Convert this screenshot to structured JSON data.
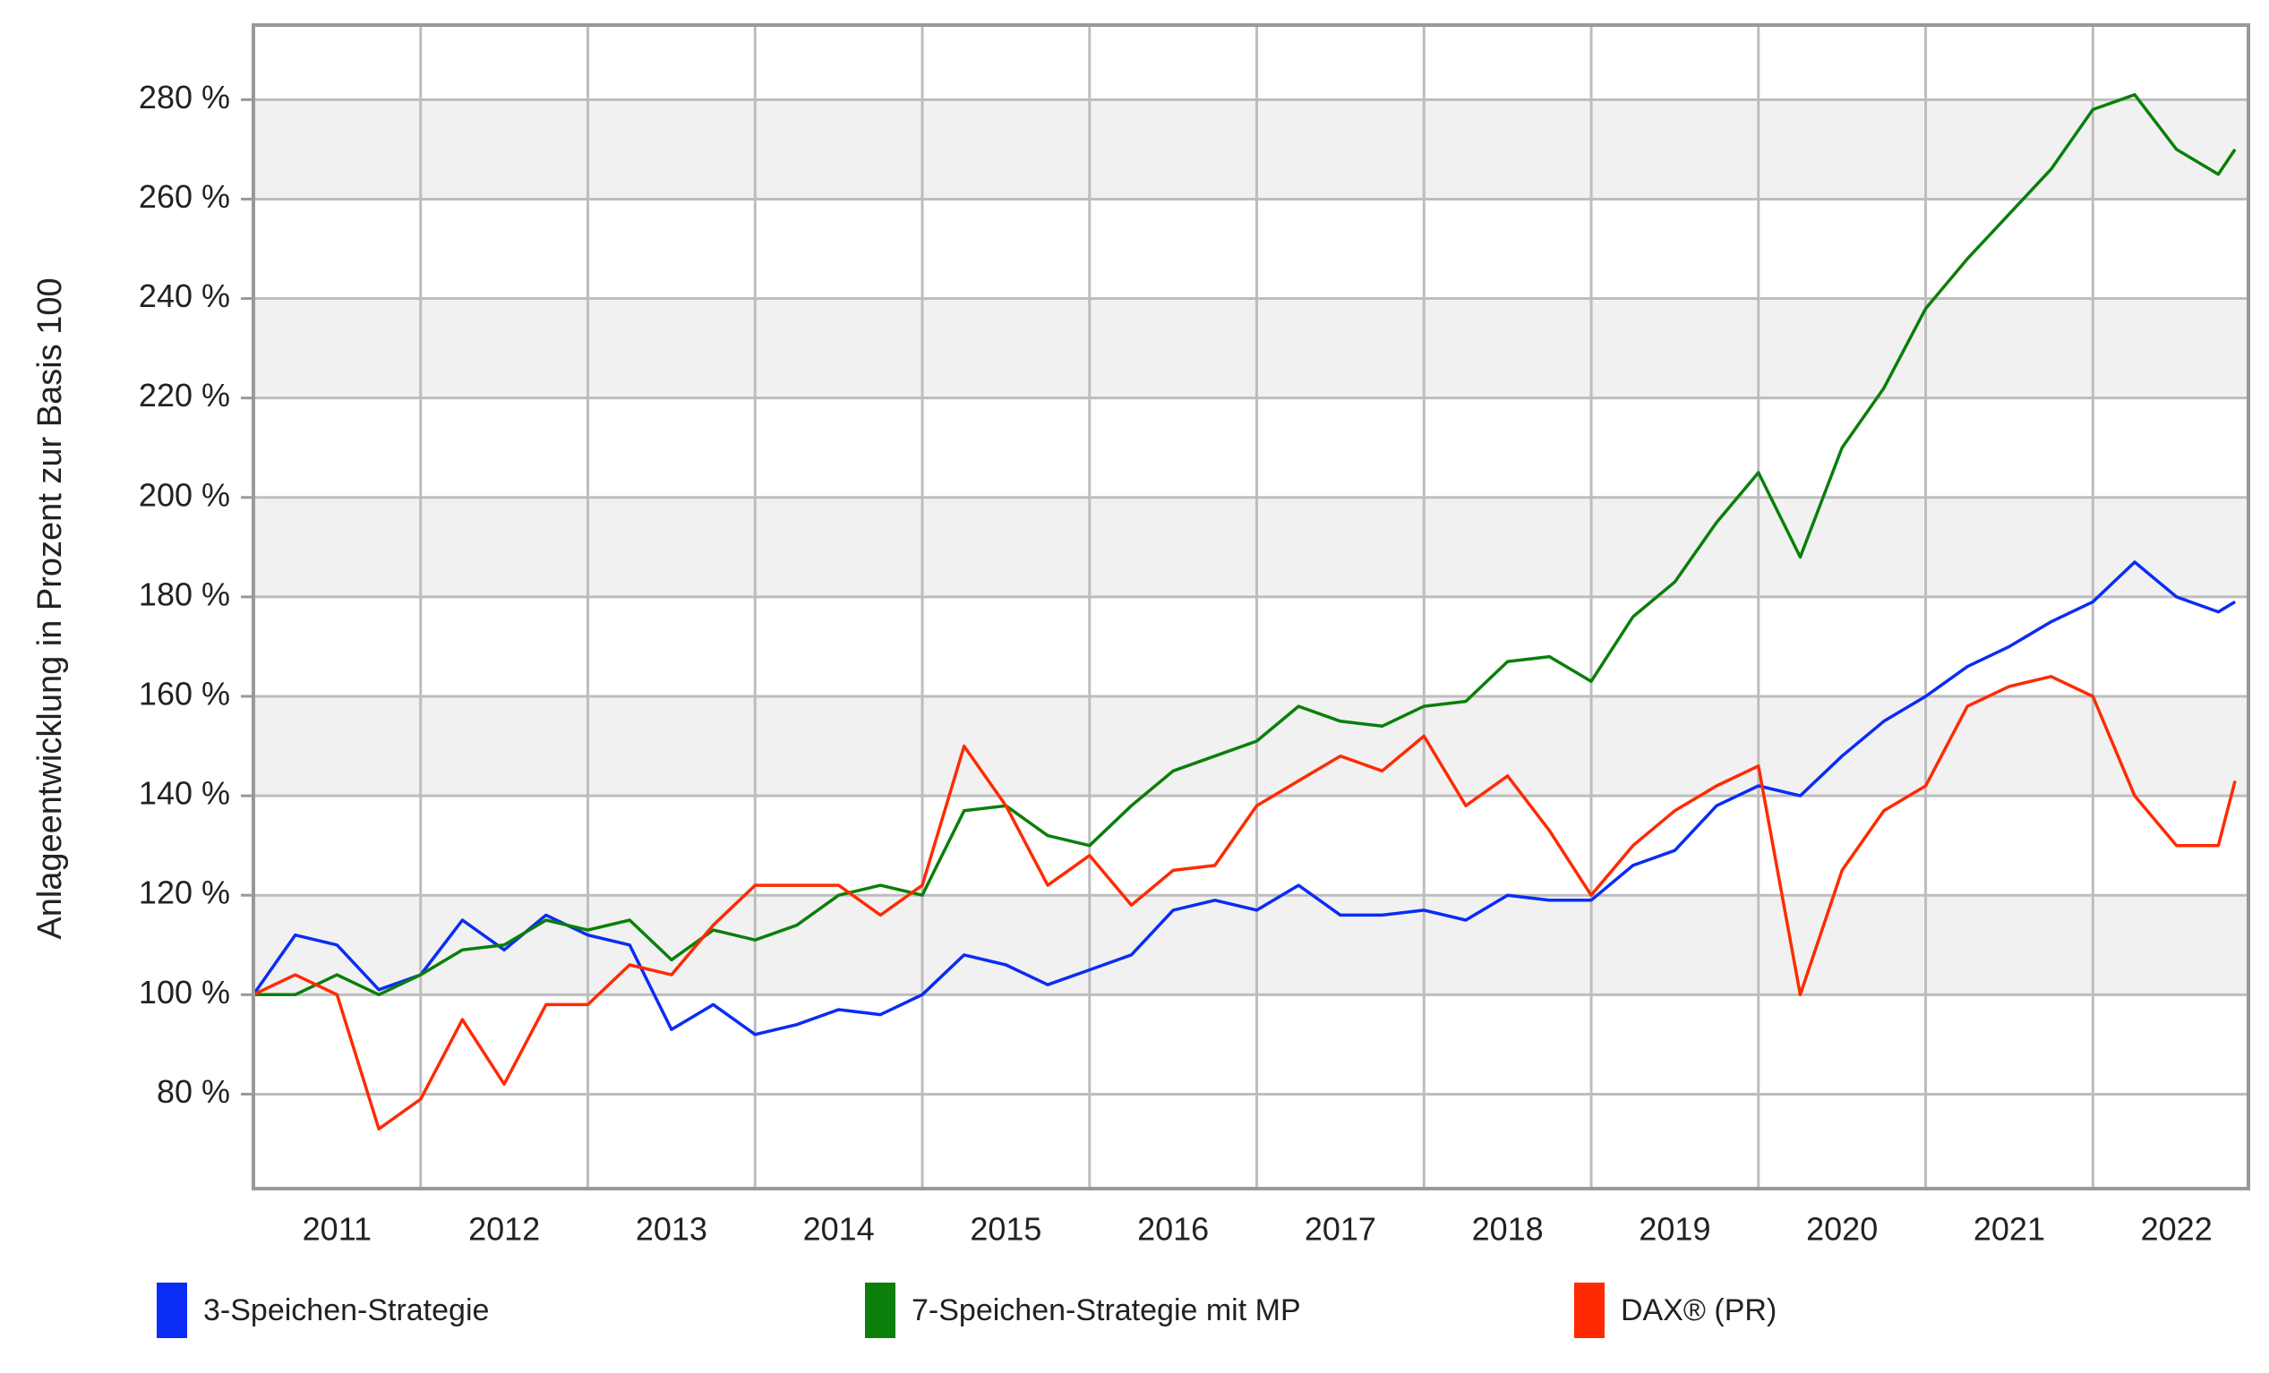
{
  "chart_data": {
    "type": "line",
    "ylabel": "Anlageentwicklung  in Prozent zur Basis 100",
    "x": [
      2011.0,
      2011.25,
      2011.5,
      2011.75,
      2012.0,
      2012.25,
      2012.5,
      2012.75,
      2013.0,
      2013.25,
      2013.5,
      2013.75,
      2014.0,
      2014.25,
      2014.5,
      2014.75,
      2015.0,
      2015.25,
      2015.5,
      2015.75,
      2016.0,
      2016.25,
      2016.5,
      2016.75,
      2017.0,
      2017.25,
      2017.5,
      2017.75,
      2018.0,
      2018.25,
      2018.5,
      2018.75,
      2019.0,
      2019.25,
      2019.5,
      2019.75,
      2020.0,
      2020.25,
      2020.5,
      2020.75,
      2021.0,
      2021.25,
      2021.5,
      2021.75,
      2022.0,
      2022.25,
      2022.5,
      2022.75,
      2022.85
    ],
    "series": [
      {
        "name": "3-Speichen-Strategie",
        "color": "#0a2cf5",
        "values": [
          100,
          112,
          110,
          101,
          104,
          115,
          109,
          116,
          112,
          110,
          93,
          98,
          92,
          94,
          97,
          96,
          100,
          108,
          106,
          102,
          105,
          108,
          117,
          119,
          117,
          122,
          116,
          116,
          117,
          115,
          120,
          119,
          119,
          126,
          129,
          138,
          142,
          140,
          148,
          155,
          160,
          166,
          170,
          175,
          179,
          187,
          180,
          177,
          179
        ]
      },
      {
        "name": "7-Speichen-Strategie mit MP",
        "color": "#0a7f0a",
        "values": [
          100,
          100,
          104,
          100,
          104,
          109,
          110,
          115,
          113,
          115,
          107,
          113,
          111,
          114,
          120,
          122,
          120,
          137,
          138,
          132,
          130,
          138,
          145,
          148,
          151,
          158,
          155,
          154,
          158,
          159,
          167,
          168,
          163,
          176,
          183,
          195,
          205,
          188,
          210,
          222,
          238,
          248,
          257,
          266,
          278,
          281,
          270,
          265,
          270
        ]
      },
      {
        "name": "DAX® (PR)",
        "color": "#ff2a00",
        "values": [
          100,
          104,
          100,
          73,
          79,
          95,
          82,
          98,
          98,
          106,
          104,
          114,
          122,
          122,
          122,
          116,
          122,
          150,
          138,
          122,
          128,
          118,
          125,
          126,
          138,
          143,
          148,
          145,
          152,
          138,
          144,
          133,
          120,
          130,
          137,
          142,
          146,
          100,
          125,
          137,
          142,
          158,
          162,
          164,
          160,
          140,
          130,
          130,
          143
        ]
      }
    ],
    "xlim": [
      2011.0,
      2022.93
    ],
    "xticks": [
      {
        "value": 2011.5,
        "label": "2011"
      },
      {
        "value": 2012.5,
        "label": "2012"
      },
      {
        "value": 2013.5,
        "label": "2013"
      },
      {
        "value": 2014.5,
        "label": "2014"
      },
      {
        "value": 2015.5,
        "label": "2015"
      },
      {
        "value": 2016.5,
        "label": "2016"
      },
      {
        "value": 2017.5,
        "label": "2017"
      },
      {
        "value": 2018.5,
        "label": "2018"
      },
      {
        "value": 2019.5,
        "label": "2019"
      },
      {
        "value": 2020.5,
        "label": "2020"
      },
      {
        "value": 2021.5,
        "label": "2021"
      },
      {
        "value": 2022.5,
        "label": "2022"
      }
    ],
    "x_gridlines": [
      2012,
      2013,
      2014,
      2015,
      2016,
      2017,
      2018,
      2019,
      2020,
      2021,
      2022
    ],
    "ylim": [
      61,
      295
    ],
    "yticks": [
      {
        "value": 80,
        "label": "80 %"
      },
      {
        "value": 100,
        "label": "100 %"
      },
      {
        "value": 120,
        "label": "120 %"
      },
      {
        "value": 140,
        "label": "140 %"
      },
      {
        "value": 160,
        "label": "160 %"
      },
      {
        "value": 180,
        "label": "180 %"
      },
      {
        "value": 200,
        "label": "200 %"
      },
      {
        "value": 220,
        "label": "220 %"
      },
      {
        "value": 240,
        "label": "240 %"
      },
      {
        "value": 260,
        "label": "260 %"
      },
      {
        "value": 280,
        "label": "280 %"
      }
    ],
    "grid": true,
    "legend": "bottom"
  }
}
